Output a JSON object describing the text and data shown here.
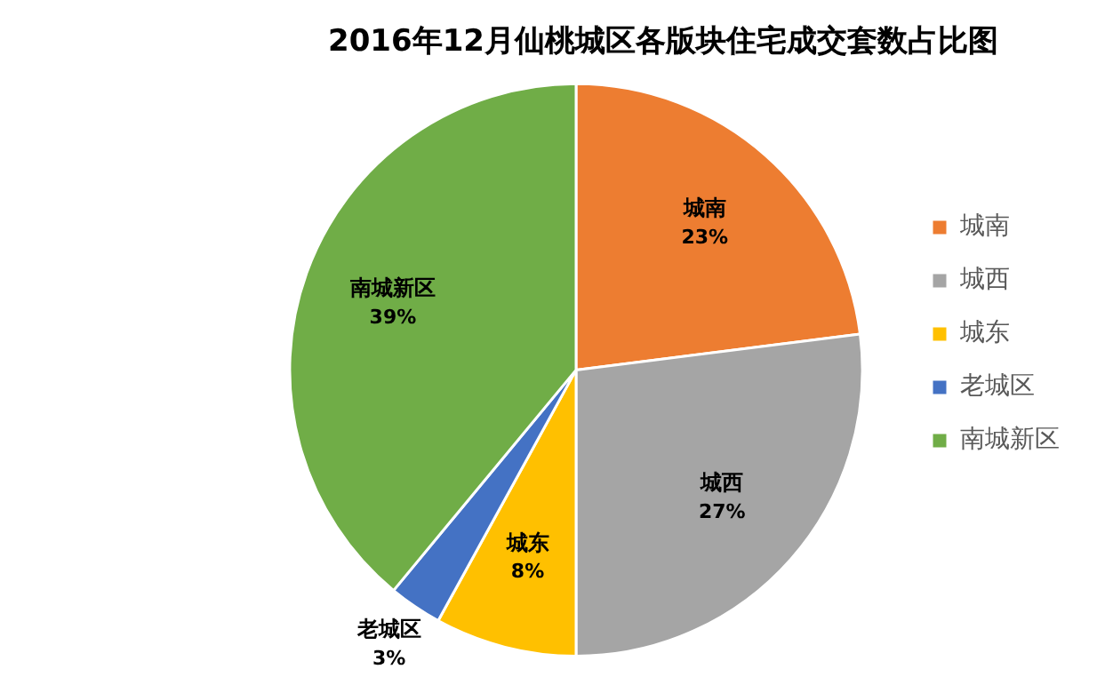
{
  "chart_data": {
    "type": "pie",
    "title": "2016年12月仙桃城区各版块住宅成交套数占比图",
    "categories": [
      "城南",
      "城西",
      "城东",
      "老城区",
      "南城新区"
    ],
    "values": [
      23,
      27,
      8,
      3,
      39
    ],
    "colors": [
      "#ed7d31",
      "#a5a5a5",
      "#ffc000",
      "#4472c4",
      "#70ad47"
    ],
    "value_labels": [
      "23%",
      "27%",
      "8%",
      "3%",
      "39%"
    ],
    "legend": "right"
  }
}
